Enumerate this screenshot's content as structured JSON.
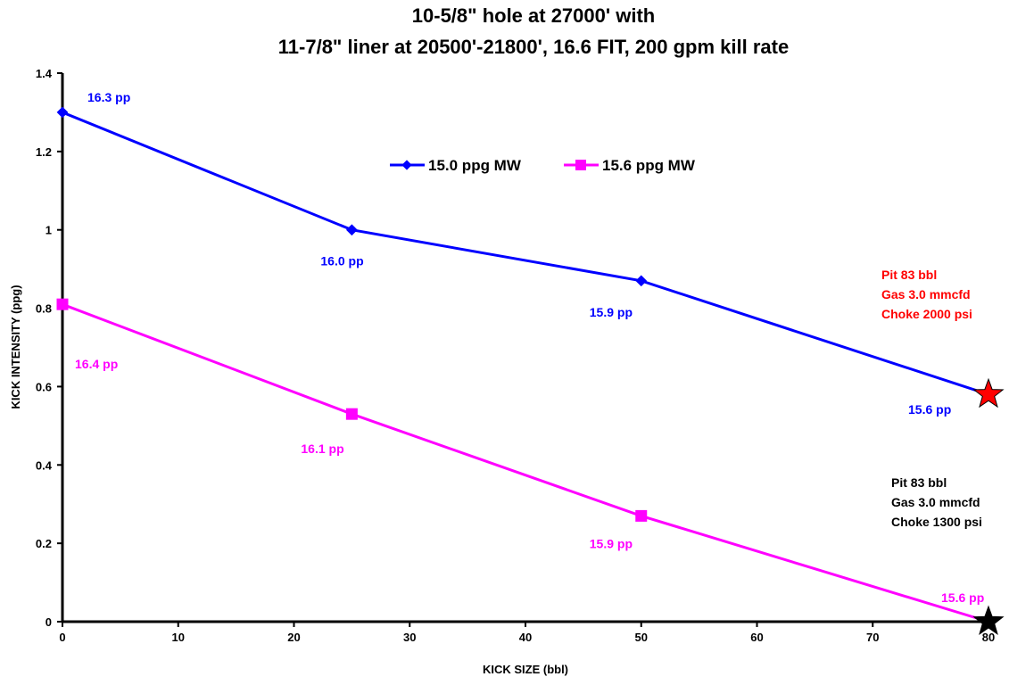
{
  "chart_data": {
    "type": "line",
    "title": [
      "10-5/8\" hole at 27000' with",
      "11-7/8\" liner at 20500'-21800', 16.6 FIT, 200 gpm kill rate"
    ],
    "xlabel": "KICK SIZE (bbl)",
    "ylabel": "KICK INTENSITY (ppg)",
    "xlim": [
      0,
      80
    ],
    "ylim": [
      0,
      1.4
    ],
    "xticks": [
      0,
      10,
      20,
      30,
      40,
      50,
      60,
      70,
      80
    ],
    "yticks": [
      0,
      0.2,
      0.4,
      0.6,
      0.8,
      1,
      1.2,
      1.4
    ],
    "grid": false,
    "legend_position": "top-center",
    "series": [
      {
        "name": "15.0 ppg MW",
        "color": "#0000ff",
        "marker": "diamond",
        "x": [
          0,
          25,
          50,
          80
        ],
        "y": [
          1.3,
          1.0,
          0.87,
          0.58
        ],
        "point_labels": [
          "16.3 pp",
          "16.0 pp",
          "15.9 pp",
          "15.6 pp"
        ],
        "end_marker": "red-star"
      },
      {
        "name": "15.6 ppg MW",
        "color": "#ff00ff",
        "marker": "square",
        "x": [
          0,
          25,
          50,
          80
        ],
        "y": [
          0.81,
          0.53,
          0.27,
          0.0
        ],
        "point_labels": [
          "16.4 pp",
          "16.1 pp",
          "15.9 pp",
          "15.6 pp"
        ],
        "end_marker": "black-star"
      }
    ],
    "annotations": [
      {
        "color": "#ff0000",
        "lines": [
          "Pit 83 bbl",
          "Gas 3.0 mmcfd",
          "Choke 2000 psi"
        ]
      },
      {
        "color": "#000000",
        "lines": [
          "Pit 83 bbl",
          "Gas 3.0 mmcfd",
          "Choke 1300 psi"
        ]
      }
    ]
  }
}
